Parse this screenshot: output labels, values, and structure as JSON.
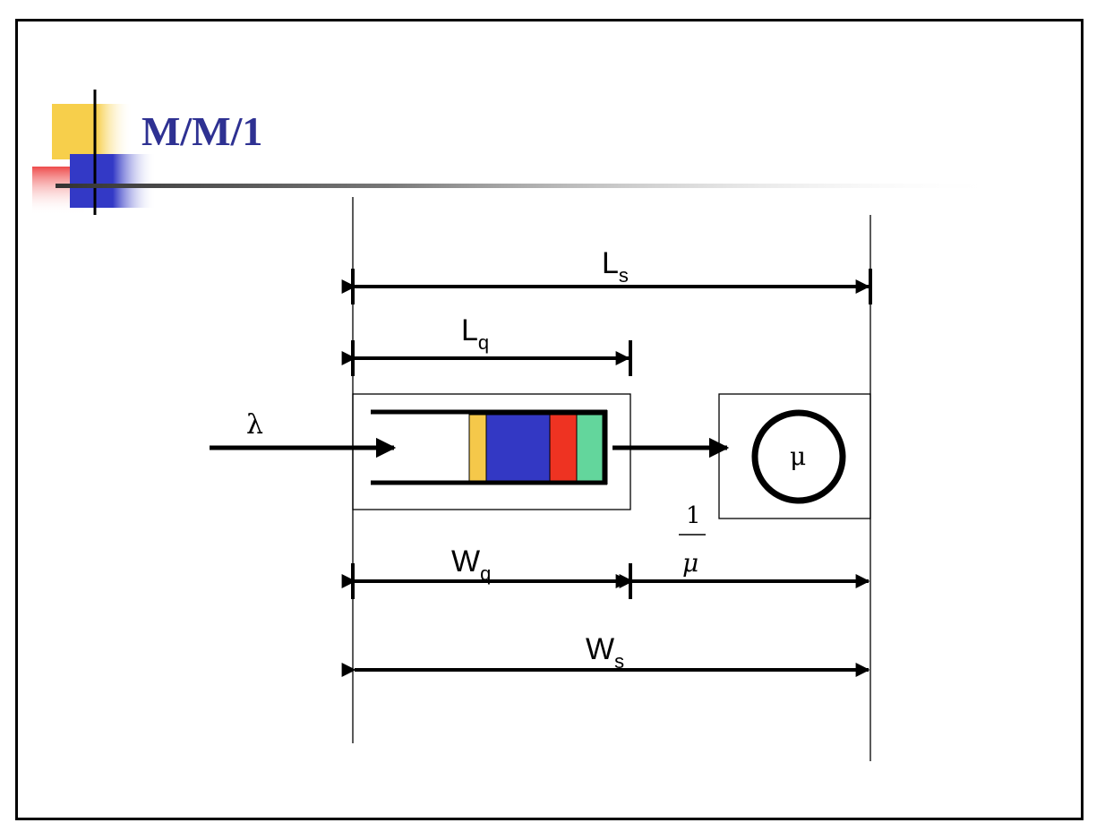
{
  "slide": {
    "title": "M/M/1"
  },
  "colors": {
    "title": "#2e3192",
    "logo_yellow": "#f7cf4b",
    "logo_blue": "#3339c6",
    "logo_red": "#ee4b4b",
    "queue_yellow": "#f5c84a",
    "queue_blue": "#3338c4",
    "queue_red": "#ee3322",
    "queue_green": "#63d69c"
  },
  "diagram": {
    "arrival_rate": "λ",
    "service_rate": "μ",
    "Ls": {
      "main": "L",
      "sub": "s"
    },
    "Lq": {
      "main": "L",
      "sub": "q"
    },
    "Wq": {
      "main": "W",
      "sub": "q"
    },
    "Ws": {
      "main": "W",
      "sub": "s"
    },
    "service_time": {
      "numerator": "1",
      "denominator": "μ"
    }
  }
}
